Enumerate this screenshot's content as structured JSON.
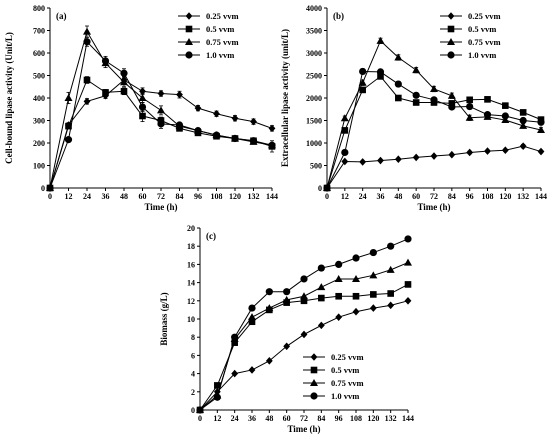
{
  "chart_data": [
    {
      "type": "line",
      "panel_label": "(a)",
      "xlabel": "Time (h)",
      "ylabel": "Cell-bound lipase activity (Unit/L)",
      "xlim": [
        0,
        144
      ],
      "ylim": [
        0,
        800
      ],
      "xticks": [
        0,
        12,
        24,
        36,
        48,
        60,
        72,
        84,
        96,
        108,
        120,
        132,
        144
      ],
      "yticks": [
        0,
        100,
        200,
        300,
        400,
        500,
        600,
        700,
        800
      ],
      "legend_position": "top-right",
      "x": [
        0,
        12,
        24,
        36,
        48,
        60,
        72,
        84,
        96,
        108,
        120,
        132,
        144
      ],
      "series": [
        {
          "name": "0.25 vvm",
          "marker": "diamond",
          "values": [
            0,
            280,
            385,
            410,
            480,
            430,
            420,
            415,
            355,
            330,
            310,
            295,
            265
          ],
          "errors": [
            0,
            10,
            12,
            12,
            15,
            15,
            12,
            15,
            12,
            12,
            12,
            12,
            12
          ]
        },
        {
          "name": "0.5 vvm",
          "marker": "square",
          "values": [
            0,
            275,
            480,
            425,
            430,
            320,
            300,
            265,
            245,
            230,
            220,
            210,
            185
          ],
          "errors": [
            0,
            10,
            15,
            12,
            15,
            25,
            15,
            12,
            12,
            10,
            10,
            10,
            25
          ]
        },
        {
          "name": "0.75 vvm",
          "marker": "triangle",
          "values": [
            0,
            400,
            695,
            555,
            470,
            400,
            345,
            275,
            255,
            235,
            220,
            205,
            190
          ],
          "errors": [
            0,
            25,
            25,
            20,
            20,
            20,
            20,
            12,
            12,
            10,
            10,
            10,
            10
          ]
        },
        {
          "name": "1.0 vvm",
          "marker": "circle",
          "values": [
            0,
            215,
            650,
            565,
            510,
            360,
            285,
            280,
            255,
            235,
            220,
            210,
            190
          ],
          "errors": [
            0,
            10,
            20,
            20,
            20,
            20,
            20,
            12,
            12,
            10,
            10,
            10,
            10
          ]
        }
      ]
    },
    {
      "type": "line",
      "panel_label": "(b)",
      "xlabel": "Time (h)",
      "ylabel": "Extracellular lipase activity (unit/L)",
      "xlim": [
        0,
        144
      ],
      "ylim": [
        0,
        4000
      ],
      "xticks": [
        0,
        12,
        24,
        36,
        48,
        60,
        72,
        84,
        96,
        108,
        120,
        132,
        144
      ],
      "yticks": [
        0,
        500,
        1000,
        1500,
        2000,
        2500,
        3000,
        3500,
        4000
      ],
      "legend_position": "top-right",
      "x": [
        0,
        12,
        24,
        36,
        48,
        60,
        72,
        84,
        96,
        108,
        120,
        132,
        144
      ],
      "series": [
        {
          "name": "0.25 vvm",
          "marker": "diamond",
          "values": [
            0,
            590,
            580,
            610,
            640,
            680,
            710,
            740,
            790,
            820,
            840,
            930,
            810
          ],
          "errors": [
            0,
            20,
            20,
            20,
            20,
            20,
            20,
            20,
            30,
            30,
            30,
            40,
            30
          ]
        },
        {
          "name": "0.5 vvm",
          "marker": "square",
          "values": [
            0,
            1280,
            2180,
            2480,
            2000,
            1900,
            1900,
            1880,
            1960,
            1970,
            1830,
            1680,
            1520
          ],
          "errors": [
            0,
            50,
            50,
            60,
            50,
            50,
            50,
            50,
            50,
            50,
            50,
            50,
            50
          ]
        },
        {
          "name": "0.75 vvm",
          "marker": "triangle",
          "values": [
            0,
            1550,
            2340,
            3270,
            2900,
            2620,
            2200,
            2050,
            1560,
            1580,
            1510,
            1380,
            1290
          ],
          "errors": [
            0,
            50,
            60,
            60,
            60,
            60,
            60,
            60,
            60,
            50,
            50,
            50,
            50
          ]
        },
        {
          "name": "1.0 vvm",
          "marker": "circle",
          "values": [
            0,
            790,
            2590,
            2580,
            2310,
            2060,
            1960,
            1800,
            1810,
            1630,
            1600,
            1500,
            1460
          ],
          "errors": [
            0,
            30,
            60,
            60,
            60,
            50,
            50,
            50,
            50,
            50,
            50,
            50,
            50
          ]
        }
      ]
    },
    {
      "type": "line",
      "panel_label": "(c)",
      "xlabel": "Time (h)",
      "ylabel": "Biomass (g/L)",
      "xlim": [
        0,
        144
      ],
      "ylim": [
        0,
        20
      ],
      "xticks": [
        0,
        12,
        24,
        36,
        48,
        60,
        72,
        84,
        96,
        108,
        120,
        132,
        144
      ],
      "yticks": [
        0,
        2,
        4,
        6,
        8,
        10,
        12,
        14,
        16,
        18,
        20
      ],
      "legend_position": "bottom-right",
      "x": [
        0,
        12,
        24,
        36,
        48,
        60,
        72,
        84,
        96,
        108,
        120,
        132,
        144
      ],
      "series": [
        {
          "name": "0.25 vvm",
          "marker": "diamond",
          "values": [
            0,
            2.0,
            4.0,
            4.4,
            5.4,
            7.0,
            8.3,
            9.3,
            10.2,
            10.8,
            11.2,
            11.5,
            12.0
          ]
        },
        {
          "name": "0.5 vvm",
          "marker": "square",
          "values": [
            0,
            2.7,
            7.4,
            9.7,
            11.0,
            11.8,
            12.0,
            12.3,
            12.5,
            12.5,
            12.7,
            12.8,
            13.8
          ]
        },
        {
          "name": "0.75 vvm",
          "marker": "triangle",
          "values": [
            0,
            1.6,
            7.8,
            10.2,
            11.2,
            12.1,
            12.5,
            13.5,
            14.4,
            14.4,
            14.8,
            15.4,
            16.2
          ]
        },
        {
          "name": "1.0 vvm",
          "marker": "circle",
          "values": [
            0,
            1.4,
            8.0,
            11.2,
            13.0,
            13.0,
            14.4,
            15.6,
            16.0,
            16.7,
            17.3,
            18.0,
            18.8
          ]
        }
      ]
    }
  ]
}
